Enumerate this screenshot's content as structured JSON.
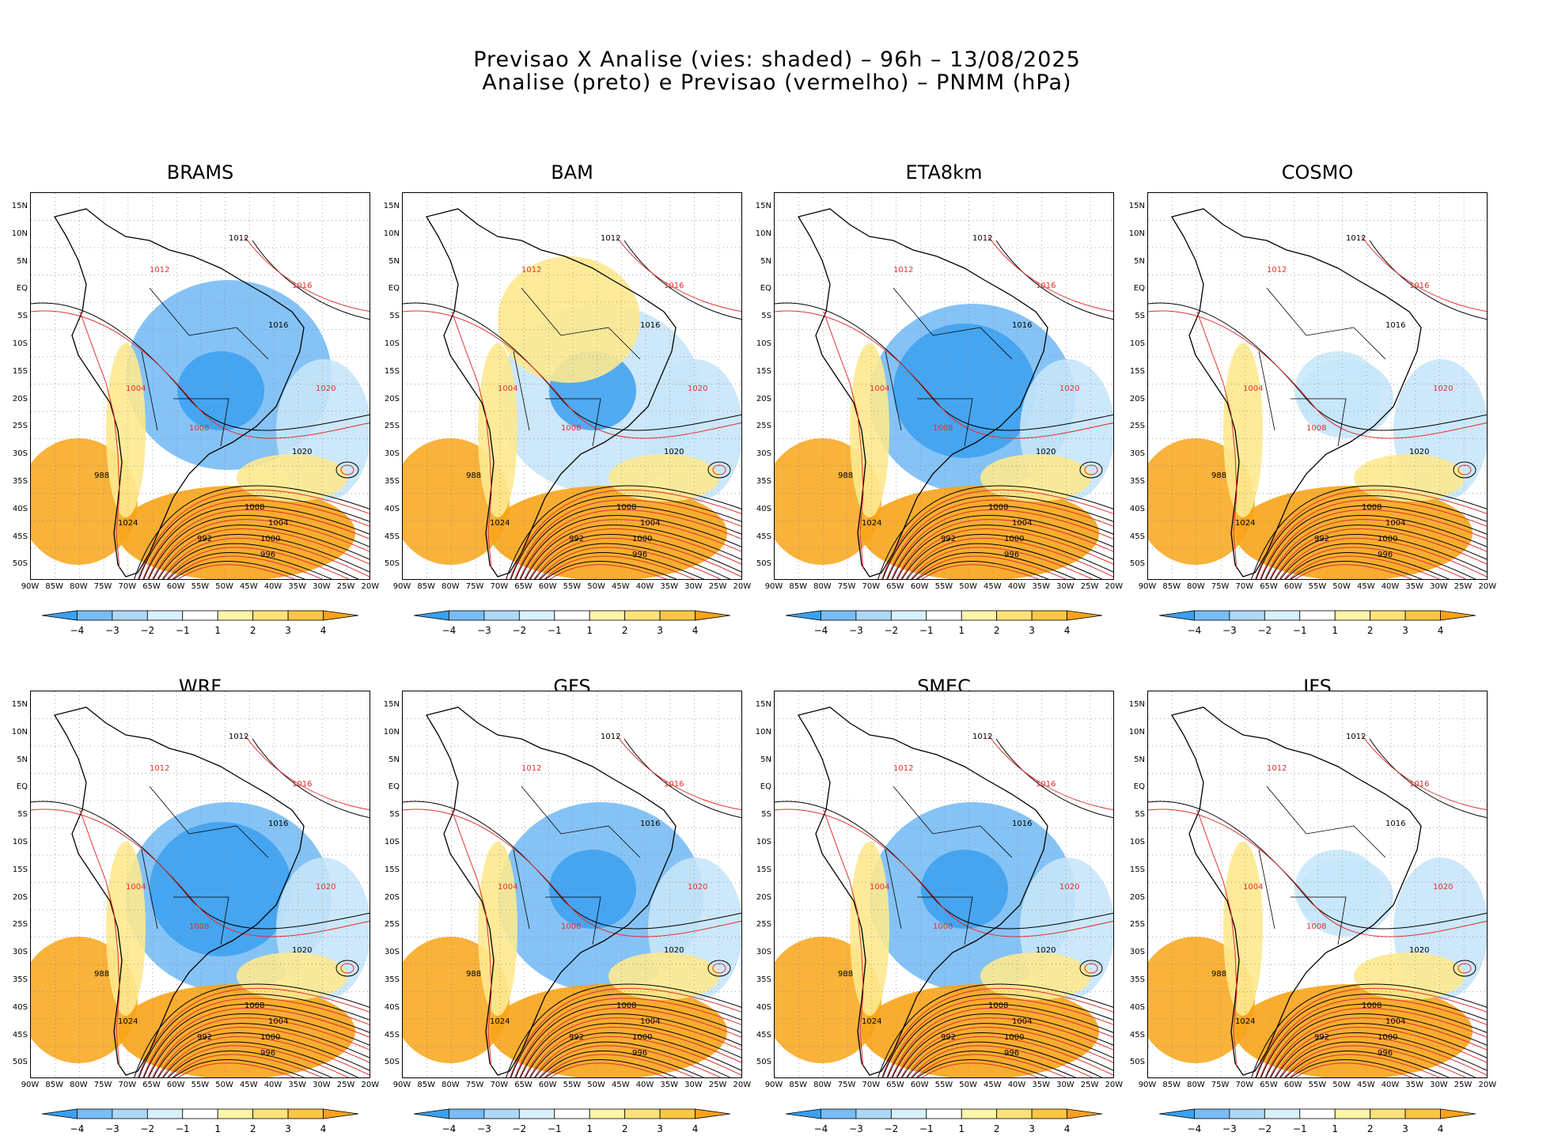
{
  "figure": {
    "title_line1": "Previsao X Analise (vies: shaded) – 96h – 13/08/2025",
    "title_line2": "Analise (preto) e Previsao (vermelho) – PNMM (hPa)"
  },
  "panels": [
    {
      "name": "BRAMS",
      "variant": "blue-north"
    },
    {
      "name": "BAM",
      "variant": "yellow-center"
    },
    {
      "name": "ETA8km",
      "variant": "blue-strong"
    },
    {
      "name": "COSMO",
      "variant": "mild"
    },
    {
      "name": "WRF",
      "variant": "blue-strong"
    },
    {
      "name": "GFS",
      "variant": "blue-center"
    },
    {
      "name": "SMEC",
      "variant": "blue-light"
    },
    {
      "name": "IFS",
      "variant": "mild"
    }
  ],
  "axes": {
    "lat_labels": [
      "15N",
      "10N",
      "5N",
      "EQ",
      "5S",
      "10S",
      "15S",
      "20S",
      "25S",
      "30S",
      "35S",
      "40S",
      "45S",
      "50S"
    ],
    "lon_labels": [
      "90W",
      "85W",
      "80W",
      "75W",
      "70W",
      "65W",
      "60W",
      "55W",
      "50W",
      "45W",
      "40W",
      "35W",
      "30W",
      "25W",
      "20W"
    ]
  },
  "colorbar": {
    "labels": [
      "−4",
      "−3",
      "−2",
      "−1",
      "1",
      "2",
      "3",
      "4"
    ],
    "colors": [
      "#3aa0f0",
      "#78bcf5",
      "#aed8f8",
      "#d8f0fb",
      "#ffffff",
      "#fdf5a8",
      "#fde27a",
      "#fcc646",
      "#f9a21a"
    ]
  },
  "contour_labels": {
    "analysis": [
      "1012",
      "1016",
      "1020",
      "1008",
      "1004",
      "1000",
      "996",
      "992",
      "988",
      "1024"
    ],
    "forecast": [
      "1012",
      "1016",
      "1020",
      "1008",
      "1004"
    ]
  },
  "colors": {
    "analysis": "#000000",
    "forecast": "#e03030",
    "neg_strong": "#3aa0f0",
    "neg_mid": "#78bcf5",
    "neg_light": "#c6e6fa",
    "pos_light": "#fde98f",
    "pos_strong": "#f8a418"
  }
}
